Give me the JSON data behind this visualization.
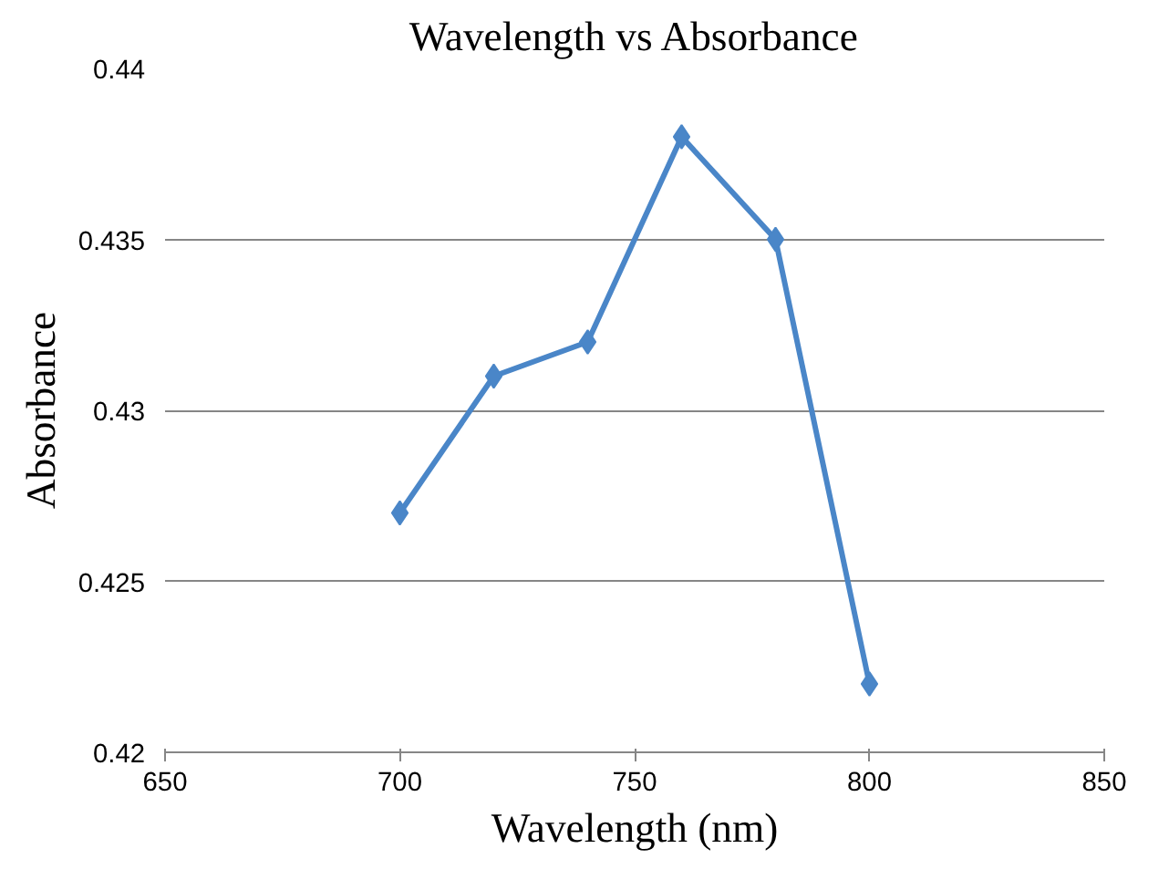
{
  "chart_data": {
    "type": "line",
    "title": "Wavelength vs Absorbance",
    "xlabel": "Wavelength (nm)",
    "ylabel": "Absorbance",
    "x": [
      700,
      720,
      740,
      760,
      780,
      800
    ],
    "series": [
      {
        "color": "#4a86c8",
        "values": [
          0.427,
          0.431,
          0.432,
          0.438,
          0.435,
          0.422
        ]
      }
    ],
    "xlim": [
      650,
      850
    ],
    "xticks": [
      650,
      700,
      750,
      800,
      850
    ],
    "ylim": [
      0.42,
      0.44
    ],
    "yticks": [
      0.42,
      0.425,
      0.43,
      0.435,
      0.44
    ],
    "grid": "y",
    "marker": "diamond",
    "line_style": "solid"
  }
}
